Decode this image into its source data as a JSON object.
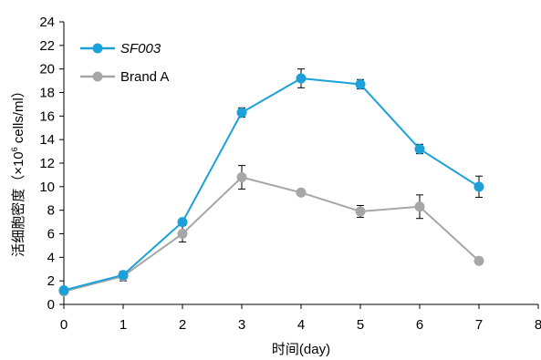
{
  "chart_data": {
    "type": "line",
    "title": "",
    "xlabel": "时间(day)",
    "ylabel": "活细胞密度（×10⁶ cells/ml）",
    "ylabel_main": "活细胞密度（×10",
    "ylabel_sup": "6",
    "ylabel_tail": " cells/ml）",
    "xlim": [
      0,
      8
    ],
    "ylim": [
      0,
      24
    ],
    "x_ticks": [
      0,
      1,
      2,
      3,
      4,
      5,
      6,
      7,
      8
    ],
    "y_ticks": [
      0,
      2,
      4,
      6,
      8,
      10,
      12,
      14,
      16,
      18,
      20,
      22,
      24
    ],
    "grid": false,
    "legend_position": "top-left",
    "series": [
      {
        "name": "SF003",
        "italic": true,
        "color": "#1BA1D8",
        "x": [
          0,
          1,
          2,
          3,
          4,
          5,
          6,
          7
        ],
        "y": [
          1.2,
          2.5,
          7.0,
          16.3,
          19.2,
          18.7,
          13.2,
          10.0
        ],
        "error": [
          0.1,
          0.2,
          0.2,
          0.4,
          0.8,
          0.4,
          0.4,
          0.9
        ]
      },
      {
        "name": "Brand A",
        "italic": false,
        "color": "#A6A6A6",
        "x": [
          0,
          1,
          2,
          3,
          4,
          5,
          6,
          7
        ],
        "y": [
          1.1,
          2.4,
          6.0,
          10.8,
          9.5,
          7.9,
          8.3,
          3.7
        ],
        "error": [
          0.1,
          0.4,
          0.7,
          1.0,
          0.1,
          0.5,
          1.0,
          0.1
        ]
      }
    ]
  }
}
